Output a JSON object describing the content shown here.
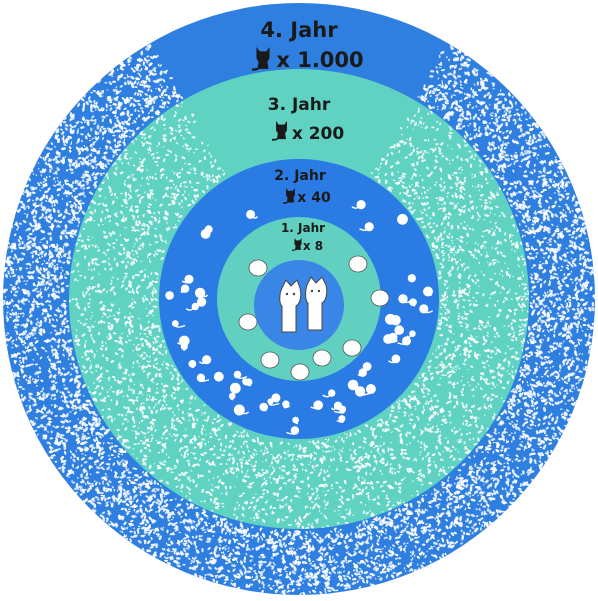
{
  "colors": {
    "outer_blue": "#2f7fe0",
    "teal": "#5fd2c2",
    "mid_blue": "#2a7be3",
    "inner_teal": "#62d0c0",
    "center_blue": "#3a86e6",
    "label_text": "#1a1a1a",
    "cat_fill": "#ffffff"
  },
  "icons": {
    "count_icon": "cat-silhouette-icon",
    "dot_texture": "cat-crowd-texture"
  },
  "rings": [
    {
      "title": "4. Jahr",
      "count": "x 1.000"
    },
    {
      "title": "3. Jahr",
      "count": "x 200"
    },
    {
      "title": "2. Jahr",
      "count": "x 40"
    },
    {
      "title": "1. Jahr",
      "count": "x 8"
    }
  ]
}
